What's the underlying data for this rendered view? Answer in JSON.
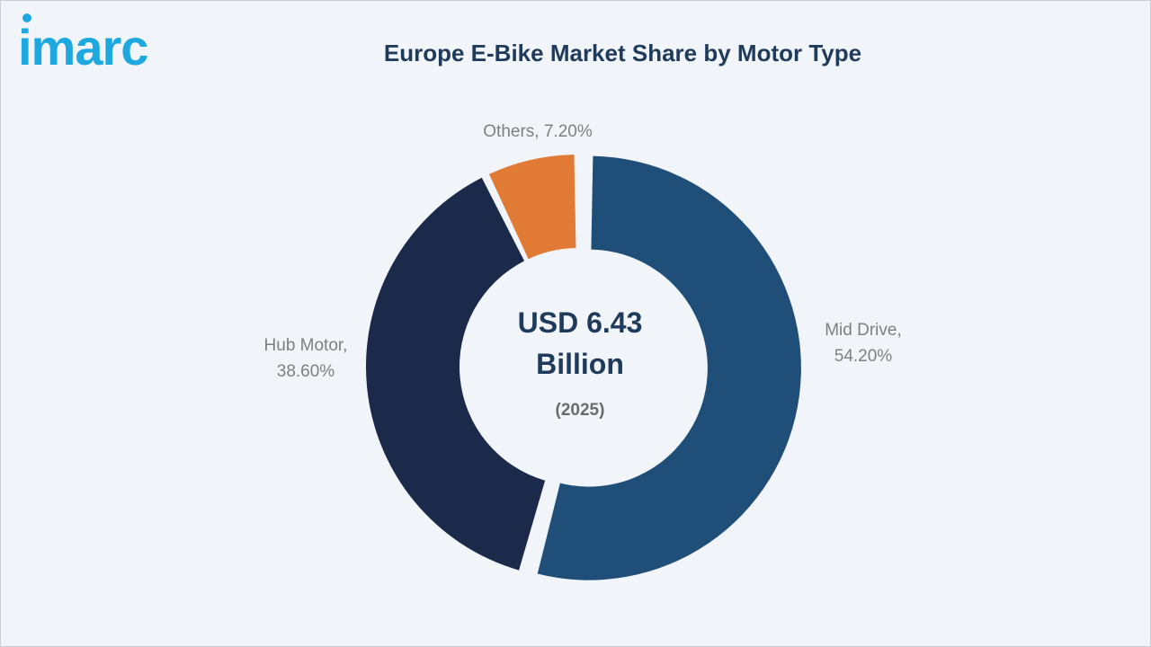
{
  "brand": {
    "logo_text": "imarc",
    "logo_color": "#1ea8e0"
  },
  "chart_data": {
    "type": "pie",
    "title": "Europe E-Bike Market Share by Motor Type",
    "center_value_line1": "USD 6.43",
    "center_value_line2": "Billion",
    "center_year": "(2025)",
    "slices": [
      {
        "name": "Mid Drive",
        "value": 54.2,
        "label_line1": "Mid Drive,",
        "label_line2": "54.20%",
        "color": "#1f4e79",
        "exploded": true
      },
      {
        "name": "Hub Motor",
        "value": 38.6,
        "label_line1": "Hub Motor,",
        "label_line2": "38.60%",
        "color": "#1b2a4a",
        "exploded": false
      },
      {
        "name": "Others",
        "value": 7.2,
        "label_line1": "Others, 7.20%",
        "label_line2": "",
        "color": "#e07a35",
        "exploded": false
      }
    ]
  }
}
